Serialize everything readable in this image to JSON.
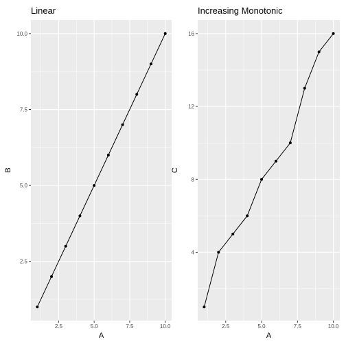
{
  "chart_data": [
    {
      "type": "line",
      "title": "Linear",
      "xlabel": "A",
      "ylabel": "B",
      "xlim": [
        0.55,
        10.45
      ],
      "ylim": [
        0.55,
        10.45
      ],
      "xticks": [
        2.5,
        5.0,
        7.5,
        10.0
      ],
      "xtick_labels": [
        "2.5",
        "5.0",
        "7.5",
        "10.0"
      ],
      "yticks": [
        2.5,
        5.0,
        7.5,
        10.0
      ],
      "ytick_labels": [
        "2.5",
        "5.0",
        "7.5",
        "10.0"
      ],
      "grid": true,
      "x": [
        1,
        2,
        3,
        4,
        5,
        6,
        7,
        8,
        9,
        10
      ],
      "y": [
        1,
        2,
        3,
        4,
        5,
        6,
        7,
        8,
        9,
        10
      ],
      "markers": true
    },
    {
      "type": "line",
      "title": "Increasing Monotonic",
      "xlabel": "A",
      "ylabel": "C",
      "xlim": [
        0.55,
        10.45
      ],
      "ylim": [
        0.25,
        16.75
      ],
      "xticks": [
        2.5,
        5.0,
        7.5,
        10.0
      ],
      "xtick_labels": [
        "2.5",
        "5.0",
        "7.5",
        "10.0"
      ],
      "yticks": [
        4,
        8,
        12,
        16
      ],
      "ytick_labels": [
        "4",
        "8",
        "12",
        "16"
      ],
      "grid": true,
      "x": [
        1,
        2,
        3,
        4,
        5,
        6,
        7,
        8,
        9,
        10
      ],
      "y": [
        1,
        4,
        5,
        6,
        8,
        9,
        10,
        13,
        15,
        16
      ],
      "markers": true
    }
  ],
  "colors": {
    "panel_background": "#ebebeb",
    "grid_major": "#ffffff",
    "line": "#000000",
    "point": "#000000",
    "tick_text": "#4d4d4d"
  }
}
